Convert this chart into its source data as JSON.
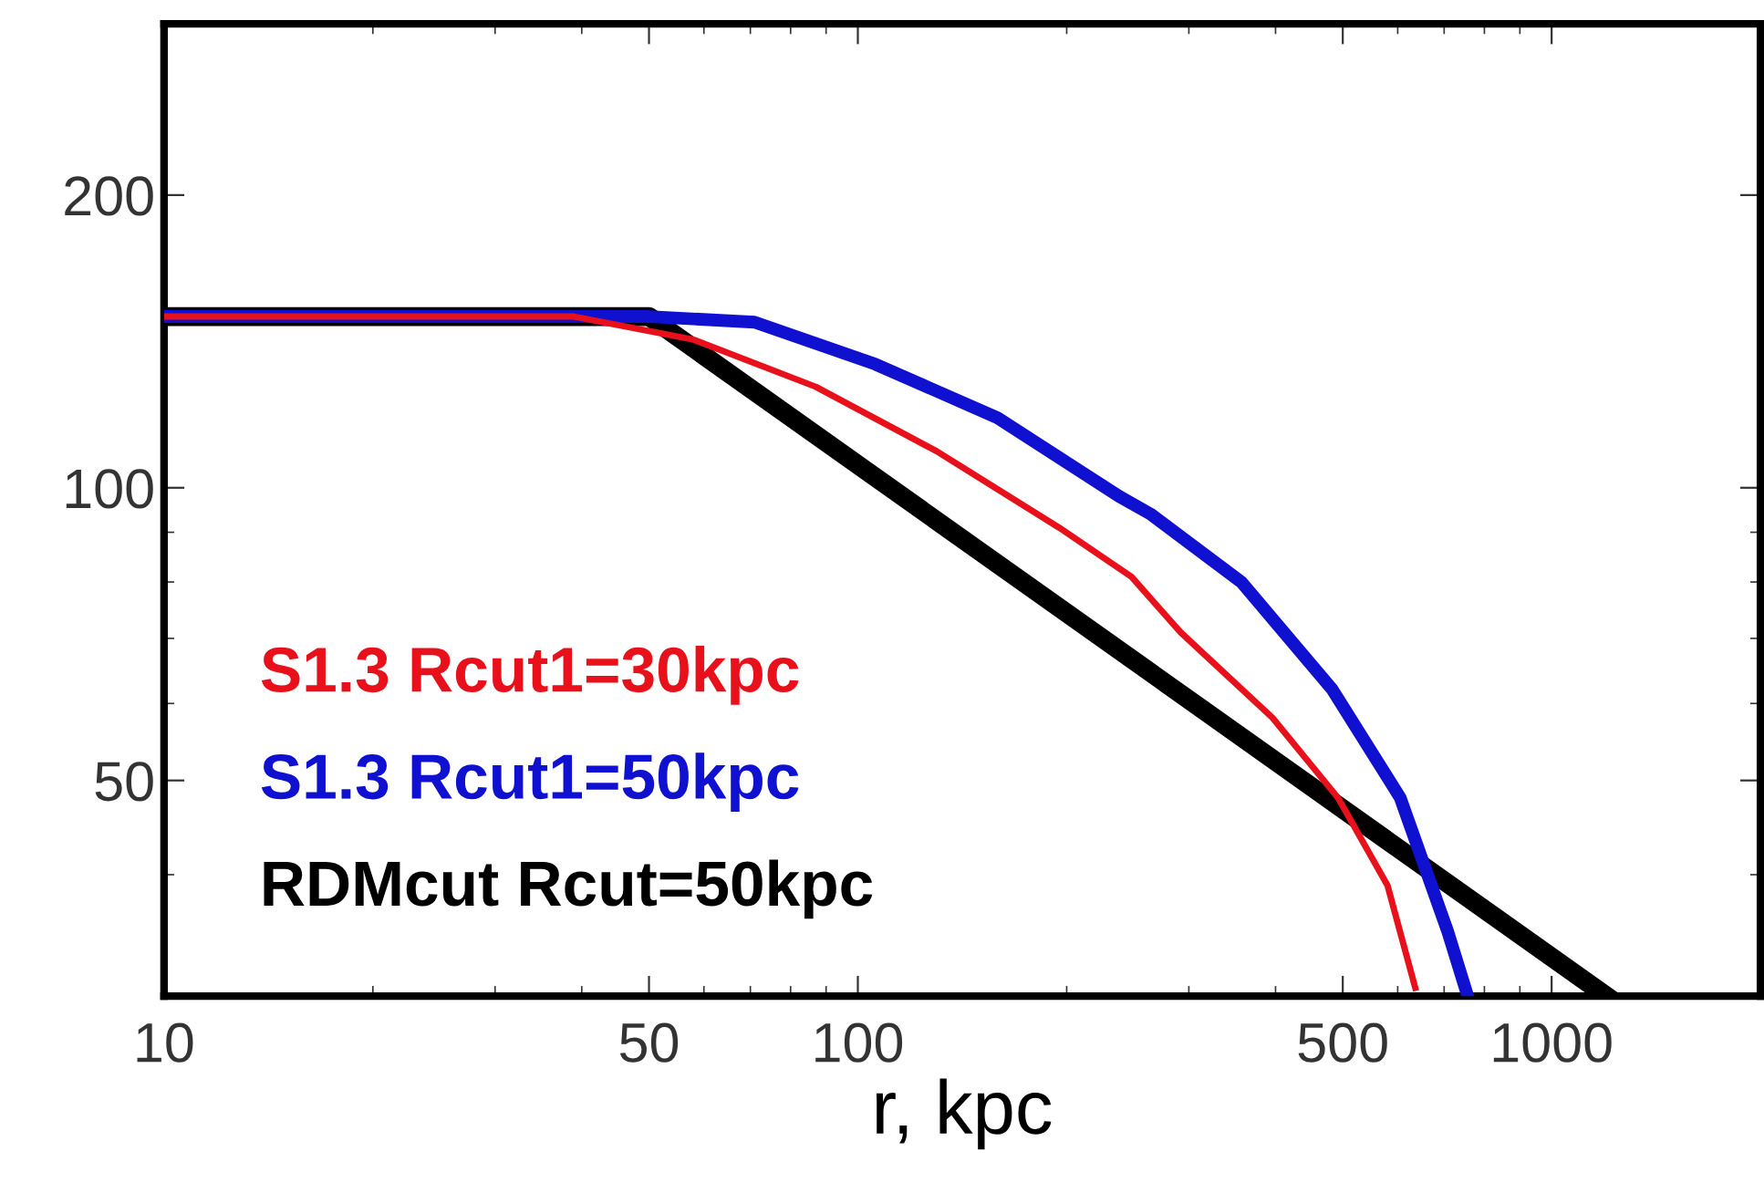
{
  "chart_data": {
    "type": "line",
    "xlabel": "r, kpc",
    "log": "xy",
    "xlim": [
      10,
      2000
    ],
    "ylim": [
      30,
      300
    ],
    "xticks": [
      10,
      50,
      100,
      500,
      1000
    ],
    "yticks": [
      50,
      100,
      200
    ],
    "grid": false,
    "legend": false,
    "marker": "none",
    "line_style": "solid",
    "series": [
      {
        "name": "S1.3 Rcut1=30kpc",
        "color": "#e8101a",
        "x": [
          10,
          39,
          58,
          87,
          130,
          195,
          248,
          292,
          396,
          492,
          580,
          636
        ],
        "values": [
          150,
          150,
          142,
          127,
          109,
          91,
          81,
          71,
          58,
          48,
          39,
          30.6
        ]
      },
      {
        "name": "S1.3 Rcut1=50kpc",
        "color": "#1010d0",
        "x": [
          10,
          50,
          71,
          106,
          159,
          238,
          264,
          357,
          483,
          605,
          708,
          757
        ],
        "values": [
          150,
          150,
          148,
          134,
          118,
          98,
          94,
          80,
          62,
          48,
          35,
          30
        ]
      },
      {
        "name": "RDMcut Rcut=50kpc",
        "color": "#000000",
        "x": [
          10,
          50,
          1200
        ],
        "values": [
          150,
          150,
          30
        ]
      }
    ]
  }
}
